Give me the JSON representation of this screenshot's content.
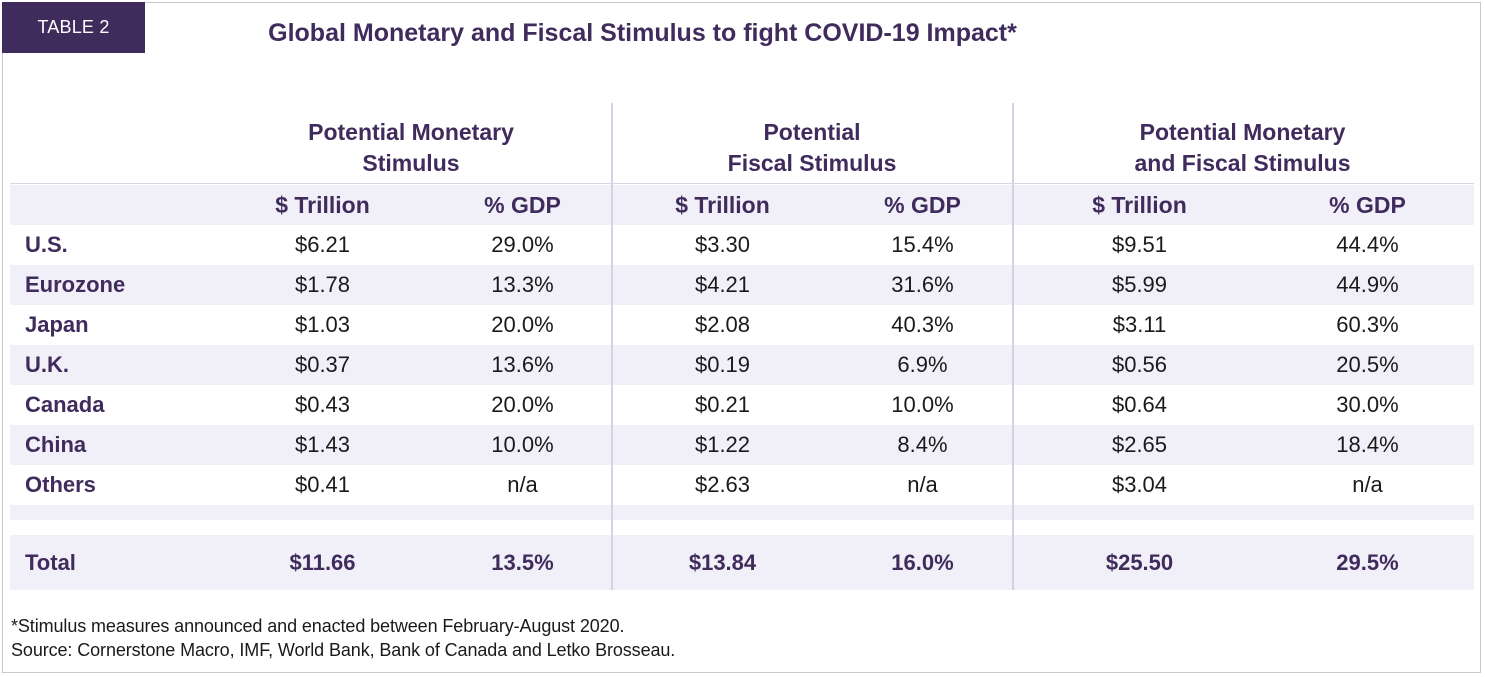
{
  "tag": "TABLE 2",
  "title": "Global Monetary and Fiscal Stimulus to fight COVID-19 Impact*",
  "groups": [
    {
      "line1": "Potential Monetary",
      "line2": "Stimulus"
    },
    {
      "line1": "Potential",
      "line2": "Fiscal Stimulus"
    },
    {
      "line1": "Potential Monetary",
      "line2": "and Fiscal Stimulus"
    }
  ],
  "subheaders": [
    "$ Trillion",
    "% GDP",
    "$ Trillion",
    "% GDP",
    "$ Trillion",
    "% GDP"
  ],
  "rows": [
    {
      "country": "U.S.",
      "values": [
        "$6.21",
        "29.0%",
        "$3.30",
        "15.4%",
        "$9.51",
        "44.4%"
      ]
    },
    {
      "country": "Eurozone",
      "values": [
        "$1.78",
        "13.3%",
        "$4.21",
        "31.6%",
        "$5.99",
        "44.9%"
      ]
    },
    {
      "country": "Japan",
      "values": [
        "$1.03",
        "20.0%",
        "$2.08",
        "40.3%",
        "$3.11",
        "60.3%"
      ]
    },
    {
      "country": "U.K.",
      "values": [
        "$0.37",
        "13.6%",
        "$0.19",
        "6.9%",
        "$0.56",
        "20.5%"
      ]
    },
    {
      "country": "Canada",
      "values": [
        "$0.43",
        "20.0%",
        "$0.21",
        "10.0%",
        "$0.64",
        "30.0%"
      ]
    },
    {
      "country": "China",
      "values": [
        "$1.43",
        "10.0%",
        "$1.22",
        "8.4%",
        "$2.65",
        "18.4%"
      ]
    },
    {
      "country": "Others",
      "values": [
        "$0.41",
        "n/a",
        "$2.63",
        "n/a",
        "$3.04",
        "n/a"
      ]
    }
  ],
  "total": {
    "label": "Total",
    "values": [
      "$11.66",
      "13.5%",
      "$13.84",
      "16.0%",
      "$25.50",
      "29.5%"
    ]
  },
  "footnote": "*Stimulus measures announced and enacted between February-August 2020.",
  "source": "Source: Cornerstone Macro, IMF, World Bank, Bank of Canada and Letko Brosseau.",
  "colors": {
    "accent": "#3f2b5c",
    "shade": "#f1f0f8",
    "divider": "#d3d1e4"
  }
}
